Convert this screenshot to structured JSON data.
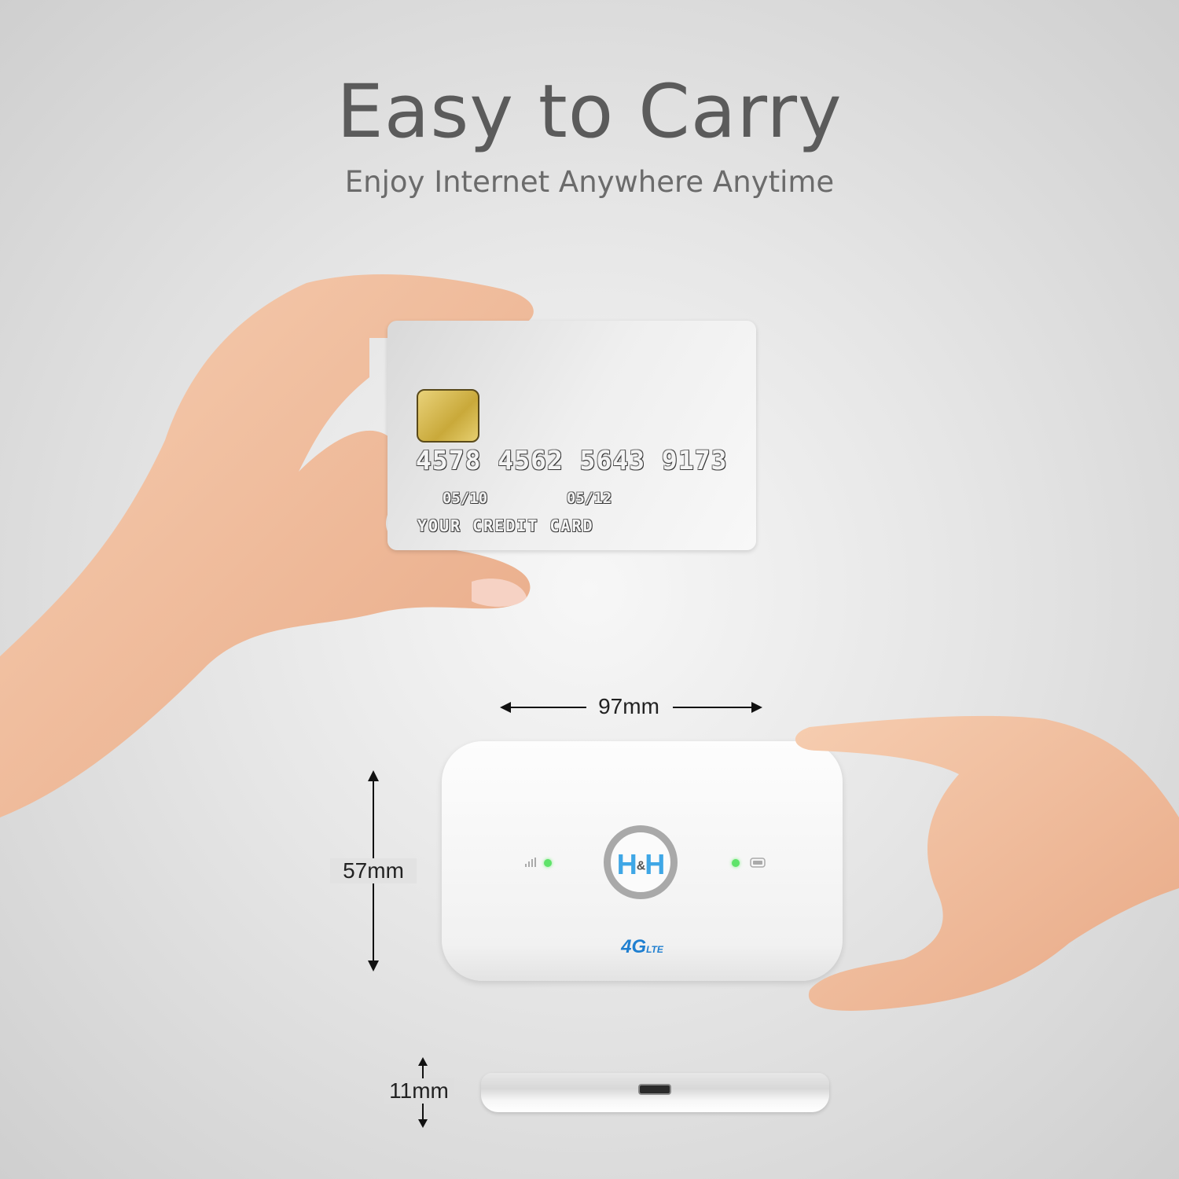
{
  "header": {
    "title": "Easy to Carry",
    "subtitle": "Enjoy Internet Anywhere Anytime"
  },
  "card": {
    "number": "4578 4562 5643 9173",
    "date_from": "05/10",
    "date_to": "05/12",
    "name": "YOUR CREDIT CARD"
  },
  "device": {
    "logo_left": "H",
    "logo_amp": "&",
    "logo_right": "H",
    "lte_main": "4G",
    "lte_sub": "LTE",
    "led_color": "#5fe36a",
    "logo_color": "#3fa7e6"
  },
  "dimensions": {
    "width": "97mm",
    "height": "57mm",
    "thickness": "11mm"
  }
}
